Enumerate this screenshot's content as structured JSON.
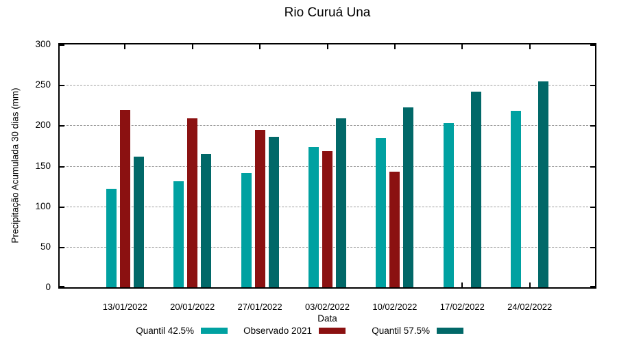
{
  "title": "Rio Curuá Una",
  "chart_data": {
    "type": "bar",
    "title": "Rio Curuá Una",
    "xlabel": "Data",
    "ylabel": "Precipitação Acumulada 30 dias (mm)",
    "categories": [
      "13/01/2022",
      "20/01/2022",
      "27/01/2022",
      "03/02/2022",
      "10/02/2022",
      "17/02/2022",
      "24/02/2022"
    ],
    "series": [
      {
        "name": "Quantil 42.5%",
        "color": "#00A1A1",
        "values": [
          122,
          131,
          141,
          173,
          184,
          203,
          218
        ]
      },
      {
        "name": "Observado 2021",
        "color": "#8B1111",
        "values": [
          219,
          209,
          194,
          168,
          143,
          null,
          null
        ]
      },
      {
        "name": "Quantil 57.5%",
        "color": "#016868",
        "values": [
          161,
          165,
          186,
          209,
          222,
          242,
          254
        ]
      }
    ],
    "ylim": [
      0,
      300
    ],
    "yticks": [
      0,
      50,
      100,
      150,
      200,
      250,
      300
    ],
    "grid": "horizontal-dashed",
    "legend_position": "bottom-center"
  },
  "colors": {
    "background": "#FFFFFF",
    "axis": "#000000",
    "grid": "#9A9A9A",
    "text": "#000000"
  }
}
